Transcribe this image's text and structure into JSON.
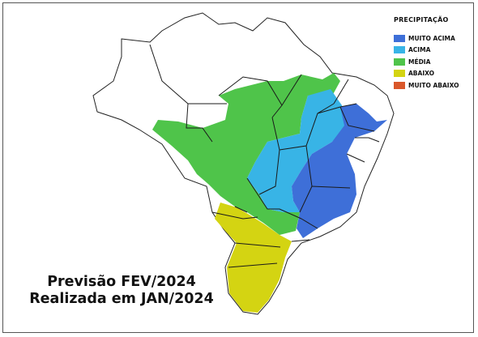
{
  "legend": {
    "title": "PRECIPITAÇÃO",
    "items": [
      {
        "label": "MUITO ACIMA",
        "color": "#3e6fd8"
      },
      {
        "label": "ACIMA",
        "color": "#38b4e6"
      },
      {
        "label": "MÉDIA",
        "color": "#4fc44a"
      },
      {
        "label": "ABAIXO",
        "color": "#d4d412"
      },
      {
        "label": "MUITO ABAIXO",
        "color": "#d9572a"
      }
    ]
  },
  "caption": {
    "line1": "Previsão FEV/2024",
    "line2": "Realizada em JAN/2024"
  }
}
